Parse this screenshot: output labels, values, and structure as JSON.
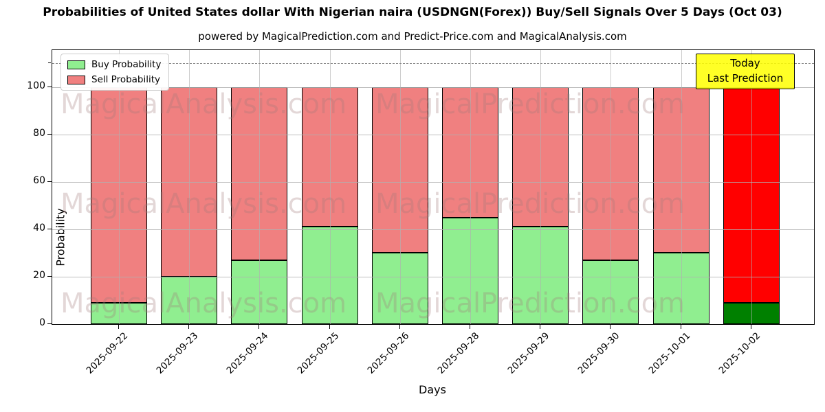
{
  "header": {
    "title": "Probabilities of United States dollar With Nigerian naira (USDNGN(Forex)) Buy/Sell Signals Over 5 Days (Oct 03)",
    "subtitle": "powered by MagicalPrediction.com and Predict-Price.com and MagicalAnalysis.com"
  },
  "legend": {
    "items": [
      {
        "label": "Buy Probability",
        "color": "#90EE90"
      },
      {
        "label": "Sell Probability",
        "color": "#F08080"
      }
    ]
  },
  "annotation_box": {
    "line1": "Today",
    "line2": "Last Prediction",
    "bg_color": "#FFFF00"
  },
  "watermarks": {
    "left_text": "MagicalAnalysis.com",
    "right_text": "MagicalPrediction.com"
  },
  "axes": {
    "ylabel": "Probability",
    "xlabel": "Days",
    "yticks": [
      0,
      20,
      40,
      60,
      80,
      100
    ],
    "dashed_line_y": 110
  },
  "chart_data": {
    "type": "bar",
    "stacked": true,
    "title": "Probabilities of United States dollar With Nigerian naira (USDNGN(Forex)) Buy/Sell Signals Over 5 Days (Oct 03)",
    "xlabel": "Days",
    "ylabel": "Probability",
    "ylim": [
      0,
      115.5
    ],
    "grid": true,
    "legend_position": "upper left",
    "categories": [
      "2025-09-22",
      "2025-09-23",
      "2025-09-24",
      "2025-09-25",
      "2025-09-26",
      "2025-09-28",
      "2025-09-29",
      "2025-09-30",
      "2025-10-01",
      "2025-10-02"
    ],
    "series": [
      {
        "name": "Buy Probability",
        "values": [
          9,
          20,
          27,
          41,
          30,
          45,
          41,
          27,
          30,
          9
        ]
      },
      {
        "name": "Sell Probability",
        "values": [
          91,
          80,
          73,
          59,
          70,
          55,
          59,
          73,
          70,
          91
        ]
      }
    ],
    "colors": {
      "buy": "#90EE90",
      "sell": "#F08080",
      "last_bar_buy": "#008000",
      "last_bar_sell": "#FF0000",
      "edge": "#000000"
    },
    "last_bar_highlighted": true
  }
}
